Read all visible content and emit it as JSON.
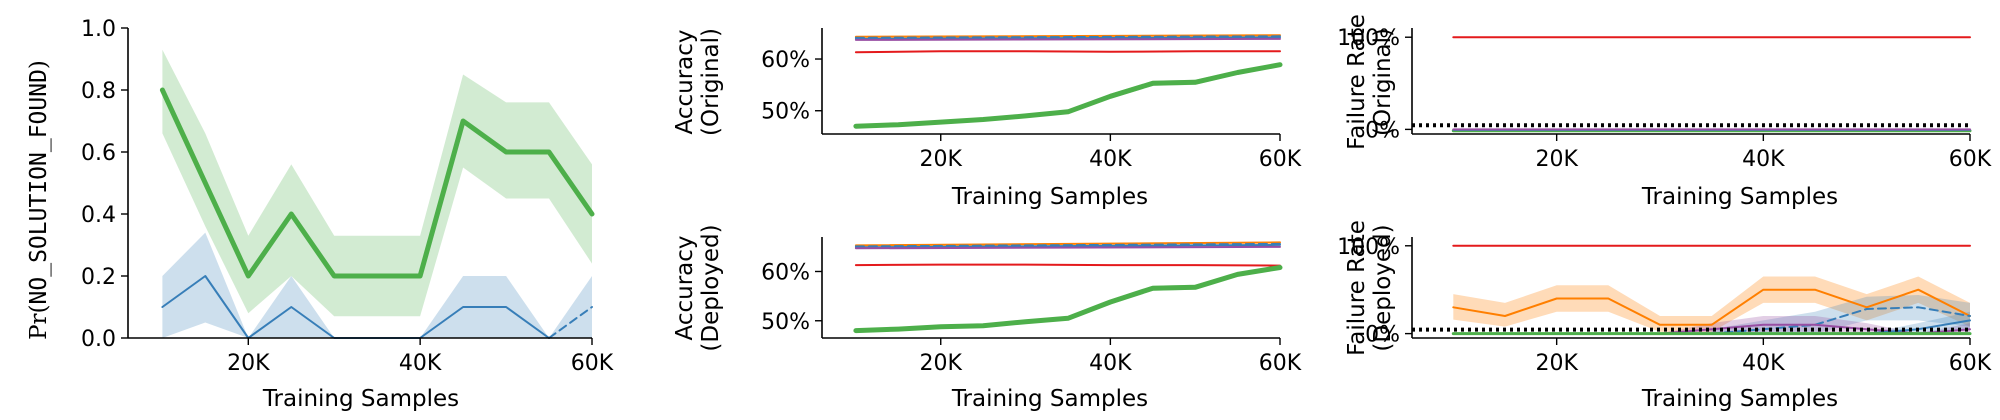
{
  "chart_data": [
    {
      "id": "p1",
      "type": "line",
      "xlabel": "Training Samples",
      "ylabel_prefix": "Pr(",
      "ylabel_mono": "NO_SOLUTION_FOUND",
      "ylabel_suffix": ")",
      "xlim": [
        6000,
        60000
      ],
      "ylim": [
        0,
        1.0
      ],
      "xticks": [
        20000,
        40000,
        60000
      ],
      "xticklabels": [
        "20K",
        "40K",
        "60K"
      ],
      "yticks": [
        0,
        0.2,
        0.4,
        0.6,
        0.8,
        1.0
      ],
      "yticklabels": [
        "0.0",
        "0.2",
        "0.4",
        "0.6",
        "0.8",
        "1.0"
      ],
      "series": [
        {
          "color": "#4daf4a",
          "width": 5,
          "x": [
            10000,
            15000,
            20000,
            25000,
            30000,
            35000,
            40000,
            45000,
            50000,
            55000,
            60000
          ],
          "y": [
            0.8,
            0.5,
            0.2,
            0.4,
            0.2,
            0.2,
            0.2,
            0.7,
            0.6,
            0.6,
            0.4
          ],
          "lo": [
            0.66,
            0.36,
            0.08,
            0.2,
            0.07,
            0.07,
            0.07,
            0.55,
            0.45,
            0.45,
            0.24
          ],
          "hi": [
            0.93,
            0.66,
            0.33,
            0.56,
            0.33,
            0.33,
            0.33,
            0.85,
            0.76,
            0.76,
            0.56
          ],
          "band_color": "#4daf4a",
          "band_opacity": 0.25
        },
        {
          "color": "#377eb8",
          "width": 2,
          "x": [
            10000,
            15000,
            20000,
            25000,
            30000,
            35000,
            40000,
            45000,
            50000,
            55000
          ],
          "y": [
            0.1,
            0.2,
            0.0,
            0.1,
            0.0,
            0.0,
            0.0,
            0.1,
            0.1,
            0.0
          ],
          "lo": [
            0,
            0.05,
            0,
            0,
            0,
            0,
            0,
            0,
            0,
            0
          ],
          "hi": [
            0.2,
            0.34,
            0,
            0.2,
            0,
            0,
            0,
            0.2,
            0.2,
            0
          ],
          "band_color": "#377eb8",
          "band_opacity": 0.25
        },
        {
          "color": "#377eb8",
          "width": 2,
          "dash": "8,5",
          "x": [
            55000,
            60000
          ],
          "y": [
            0.0,
            0.1
          ],
          "lo": [
            0,
            0
          ],
          "hi": [
            0,
            0.2
          ],
          "band_color": "#377eb8",
          "band_opacity": 0.25
        }
      ]
    },
    {
      "id": "p2",
      "type": "line",
      "xlabel": "Training Samples",
      "ylabel_lines": [
        "Accuracy",
        "(Original)"
      ],
      "xlim": [
        6000,
        60000
      ],
      "ylim": [
        45.5,
        66
      ],
      "xticks": [
        20000,
        40000,
        60000
      ],
      "xticklabels": [
        "20K",
        "40K",
        "60K"
      ],
      "yticks": [
        50,
        60
      ],
      "yticklabels": [
        "50%",
        "60%"
      ],
      "series": [
        {
          "color": "#ff7f00",
          "width": 2,
          "x": [
            10000,
            60000
          ],
          "y": [
            64.3,
            64.6
          ]
        },
        {
          "color": "#377eb8",
          "width": 2,
          "dash": "8,5",
          "x": [
            10000,
            60000
          ],
          "y": [
            64.1,
            64.4
          ]
        },
        {
          "color": "#377eb8",
          "width": 2,
          "x": [
            10000,
            60000
          ],
          "y": [
            63.9,
            64.2
          ]
        },
        {
          "color": "#984ea3",
          "width": 2,
          "x": [
            10000,
            60000
          ],
          "y": [
            63.7,
            63.9
          ]
        },
        {
          "color": "#e41a1c",
          "width": 2,
          "x": [
            10000,
            20000,
            30000,
            40000,
            50000,
            60000
          ],
          "y": [
            61.3,
            61.5,
            61.5,
            61.4,
            61.5,
            61.5
          ]
        },
        {
          "color": "#4daf4a",
          "width": 5,
          "x": [
            10000,
            15000,
            20000,
            25000,
            30000,
            35000,
            40000,
            45000,
            50000,
            55000,
            60000
          ],
          "y": [
            47.0,
            47.3,
            47.8,
            48.3,
            49.0,
            49.8,
            52.8,
            55.3,
            55.5,
            57.4,
            58.9
          ],
          "lo": [
            46.7,
            47.0,
            47.5,
            48.0,
            48.6,
            49.4,
            52.3,
            54.8,
            55.0,
            57.0,
            58.5
          ],
          "hi": [
            47.3,
            47.6,
            48.1,
            48.6,
            49.4,
            50.2,
            53.3,
            55.8,
            56.0,
            57.8,
            59.3
          ],
          "band_color": "#4daf4a",
          "band_opacity": 0.3
        }
      ]
    },
    {
      "id": "p3",
      "type": "line",
      "xlabel": "Training Samples",
      "ylabel_lines": [
        "Failure Rate",
        "(Original)"
      ],
      "xlim": [
        6000,
        60000
      ],
      "ylim": [
        -5,
        110
      ],
      "xticks": [
        20000,
        40000,
        60000
      ],
      "xticklabels": [
        "20K",
        "40K",
        "60K"
      ],
      "yticks": [
        0,
        100
      ],
      "yticklabels": [
        "0%",
        "100%"
      ],
      "hline": {
        "y": 4.5,
        "color": "#000000",
        "dash": "3,4",
        "width": 4
      },
      "series": [
        {
          "color": "#e41a1c",
          "width": 2,
          "x": [
            10000,
            60000
          ],
          "y": [
            100,
            100
          ]
        },
        {
          "color": "#4daf4a",
          "width": 3,
          "x": [
            10000,
            60000
          ],
          "y": [
            -1.5,
            -1.5
          ]
        },
        {
          "color": "#377eb8",
          "width": 2,
          "x": [
            10000,
            60000
          ],
          "y": [
            -0.5,
            -0.5
          ]
        },
        {
          "color": "#984ea3",
          "width": 2,
          "x": [
            10000,
            60000
          ],
          "y": [
            0,
            0
          ]
        }
      ]
    },
    {
      "id": "p4",
      "type": "line",
      "xlabel": "Training Samples",
      "ylabel_lines": [
        "Accuracy",
        "(Deployed)"
      ],
      "xlim": [
        6000,
        60000
      ],
      "ylim": [
        46.5,
        67
      ],
      "xticks": [
        20000,
        40000,
        60000
      ],
      "xticklabels": [
        "20K",
        "40K",
        "60K"
      ],
      "yticks": [
        50,
        60
      ],
      "yticklabels": [
        "50%",
        "60%"
      ],
      "series": [
        {
          "color": "#ff7f00",
          "width": 2,
          "x": [
            10000,
            60000
          ],
          "y": [
            65.3,
            65.9
          ]
        },
        {
          "color": "#377eb8",
          "width": 2,
          "dash": "8,5",
          "x": [
            10000,
            60000
          ],
          "y": [
            65.1,
            65.6
          ]
        },
        {
          "color": "#377eb8",
          "width": 2,
          "x": [
            10000,
            60000
          ],
          "y": [
            64.9,
            65.4
          ]
        },
        {
          "color": "#984ea3",
          "width": 2,
          "x": [
            10000,
            60000
          ],
          "y": [
            64.7,
            65.0
          ]
        },
        {
          "color": "#e41a1c",
          "width": 2,
          "x": [
            10000,
            20000,
            30000,
            40000,
            50000,
            60000
          ],
          "y": [
            61.3,
            61.4,
            61.4,
            61.3,
            61.3,
            61.2
          ]
        },
        {
          "color": "#4daf4a",
          "width": 5,
          "x": [
            10000,
            15000,
            20000,
            25000,
            30000,
            35000,
            40000,
            45000,
            50000,
            55000,
            60000
          ],
          "y": [
            48.0,
            48.3,
            48.8,
            49.0,
            49.8,
            50.5,
            53.8,
            56.6,
            56.8,
            59.4,
            60.8
          ],
          "lo": [
            47.7,
            48.0,
            48.5,
            48.7,
            49.4,
            50.1,
            53.3,
            56.1,
            56.3,
            59.0,
            60.4
          ],
          "hi": [
            48.3,
            48.6,
            49.1,
            49.3,
            50.2,
            50.9,
            54.3,
            57.1,
            57.3,
            59.8,
            61.2
          ],
          "band_color": "#4daf4a",
          "band_opacity": 0.3
        }
      ]
    },
    {
      "id": "p5",
      "type": "line",
      "xlabel": "Training Samples",
      "ylabel_lines": [
        "Failure Rate",
        "(Deployed)"
      ],
      "xlim": [
        6000,
        60000
      ],
      "ylim": [
        -5,
        110
      ],
      "xticks": [
        20000,
        40000,
        60000
      ],
      "xticklabels": [
        "20K",
        "40K",
        "60K"
      ],
      "yticks": [
        0,
        100
      ],
      "yticklabels": [
        "0%",
        "100%"
      ],
      "hline": {
        "y": 4.5,
        "color": "#000000",
        "dash": "3,4",
        "width": 4
      },
      "series": [
        {
          "color": "#e41a1c",
          "width": 2,
          "x": [
            10000,
            60000
          ],
          "y": [
            100,
            100
          ]
        },
        {
          "color": "#ff7f00",
          "width": 2,
          "x": [
            10000,
            15000,
            20000,
            25000,
            30000,
            35000,
            40000,
            45000,
            50000,
            55000,
            60000
          ],
          "y": [
            30,
            20,
            40,
            40,
            10,
            10,
            50,
            50,
            30,
            50,
            20
          ],
          "lo": [
            16,
            8,
            25,
            25,
            2,
            2,
            35,
            35,
            15,
            35,
            8
          ],
          "hi": [
            45,
            35,
            55,
            55,
            20,
            20,
            65,
            65,
            45,
            65,
            35
          ],
          "band_color": "#ff7f00",
          "band_opacity": 0.28
        },
        {
          "color": "#377eb8",
          "width": 2,
          "dash": "8,5",
          "x": [
            35000,
            40000,
            45000,
            50000,
            55000,
            60000
          ],
          "y": [
            0,
            5,
            10,
            28,
            30,
            20
          ],
          "lo": [
            0,
            0,
            0,
            15,
            15,
            8
          ],
          "hi": [
            5,
            15,
            25,
            42,
            44,
            35
          ],
          "band_color": "#377eb8",
          "band_opacity": 0.25
        },
        {
          "color": "#984ea3",
          "width": 2,
          "x": [
            10000,
            20000,
            30000,
            35000,
            40000,
            45000,
            50000,
            55000,
            60000
          ],
          "y": [
            0,
            0,
            0,
            5,
            10,
            10,
            5,
            0,
            5
          ],
          "lo": [
            0,
            0,
            0,
            0,
            2,
            2,
            0,
            0,
            0
          ],
          "hi": [
            0,
            0,
            0,
            12,
            20,
            20,
            12,
            0,
            12
          ],
          "band_color": "#984ea3",
          "band_opacity": 0.28
        },
        {
          "color": "#377eb8",
          "width": 2,
          "x": [
            10000,
            20000,
            30000,
            40000,
            50000,
            55000,
            60000
          ],
          "y": [
            0,
            0,
            0,
            0,
            0,
            5,
            15
          ],
          "lo": [
            0,
            0,
            0,
            0,
            0,
            0,
            5
          ],
          "hi": [
            0,
            0,
            0,
            0,
            0,
            12,
            25
          ],
          "band_color": "#377eb8",
          "band_opacity": 0.25
        },
        {
          "color": "#4daf4a",
          "width": 3,
          "x": [
            10000,
            60000
          ],
          "y": [
            0,
            0
          ]
        }
      ]
    }
  ]
}
